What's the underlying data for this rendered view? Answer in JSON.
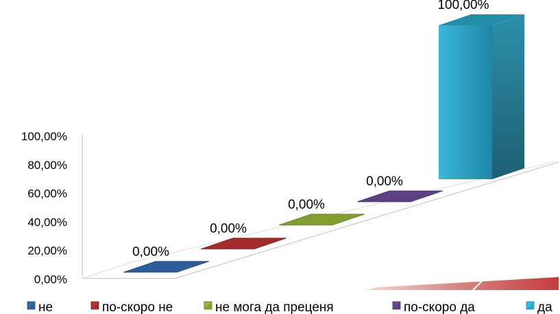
{
  "chart_data": {
    "type": "bar",
    "subtype": "3d-column-stepped",
    "categories": [
      "не",
      "по-скоро не",
      "не мога да преценя",
      "по-скоро да",
      "да"
    ],
    "values": [
      0,
      0,
      0,
      0,
      100
    ],
    "value_labels": [
      "0,00%",
      "0,00%",
      "0,00%",
      "0,00%",
      "100,00%"
    ],
    "ylim": [
      0,
      100
    ],
    "yticks": [
      "0,00%",
      "20,00%",
      "40,00%",
      "60,00%",
      "80,00%",
      "100,00%"
    ],
    "legend_position": "bottom",
    "grid": false,
    "colors": [
      "#2E5E9A",
      "#A22B2B",
      "#7FA030",
      "#5E3F86",
      "#2AA7C8"
    ]
  }
}
